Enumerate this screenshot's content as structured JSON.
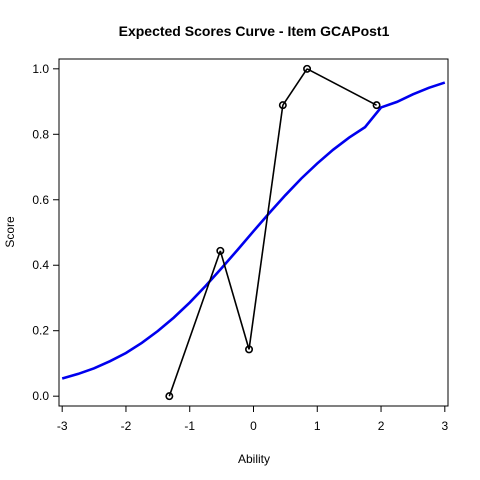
{
  "chart_data": {
    "type": "line",
    "title": "Expected Scores Curve - Item  GCAPost1",
    "xlabel": "Ability",
    "ylabel": "Score",
    "xlim": [
      -3.05,
      3.05
    ],
    "ylim": [
      -0.03,
      1.03
    ],
    "x_ticks": [
      -3,
      -2,
      -1,
      0,
      1,
      2,
      3
    ],
    "y_ticks": [
      0.0,
      0.2,
      0.4,
      0.6,
      0.8,
      1.0
    ],
    "x_tick_labels": [
      "-3",
      "-2",
      "-1",
      "0",
      "1",
      "2",
      "3"
    ],
    "y_tick_labels": [
      "0.0",
      "0.2",
      "0.4",
      "0.6",
      "0.8",
      "1.0"
    ],
    "grid": false,
    "series": [
      {
        "kind": "expected-curve",
        "color": "#0000ee",
        "x": [
          -3.0,
          -2.75,
          -2.5,
          -2.25,
          -2.0,
          -1.75,
          -1.5,
          -1.25,
          -1.0,
          -0.75,
          -0.5,
          -0.25,
          0.0,
          0.25,
          0.5,
          0.75,
          1.0,
          1.25,
          1.5,
          1.75,
          2.0,
          2.25,
          2.5,
          2.75,
          3.0
        ],
        "y": [
          0.054,
          0.068,
          0.085,
          0.107,
          0.132,
          0.163,
          0.199,
          0.24,
          0.286,
          0.337,
          0.391,
          0.447,
          0.504,
          0.56,
          0.614,
          0.665,
          0.711,
          0.753,
          0.79,
          0.822,
          0.882,
          0.899,
          0.922,
          0.942,
          0.958
        ]
      },
      {
        "kind": "observed-points",
        "color": "#000000",
        "x": [
          -1.32,
          -0.52,
          -0.07,
          0.46,
          0.84,
          1.93
        ],
        "y": [
          0.0,
          0.444,
          0.143,
          0.889,
          1.0,
          0.889
        ]
      }
    ]
  }
}
